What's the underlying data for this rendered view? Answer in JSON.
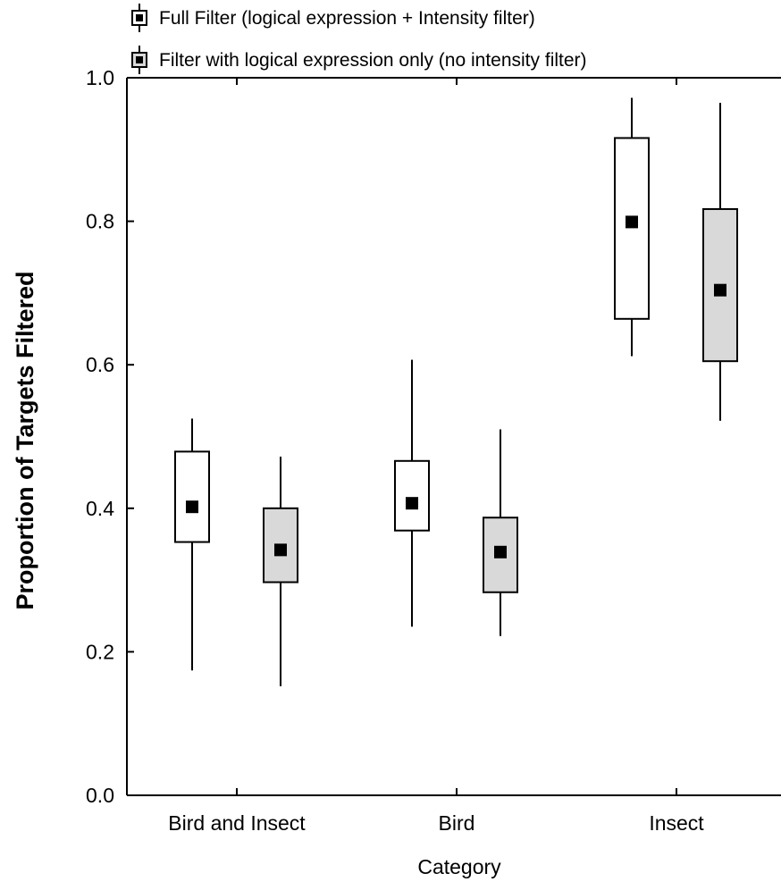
{
  "chart_data": {
    "type": "boxplot",
    "xlabel": "Category",
    "ylabel": "Proportion of Targets Filtered",
    "ylim": [
      0.0,
      1.0
    ],
    "yticks": [
      "0.0",
      "0.2",
      "0.4",
      "0.6",
      "0.8",
      "1.0"
    ],
    "categories": [
      "Bird and Insect",
      "Bird",
      "Insect"
    ],
    "grid": false,
    "legend_position": "top-left, above plot",
    "series": [
      {
        "name": "Full Filter (logical expression + Intensity filter)",
        "fill": "#ffffff",
        "mean": [
          0.402,
          0.407,
          0.799
        ],
        "box_low": [
          0.353,
          0.369,
          0.664
        ],
        "box_high": [
          0.479,
          0.466,
          0.916
        ],
        "whisker_low": [
          0.174,
          0.235,
          0.612
        ],
        "whisker_high": [
          0.525,
          0.607,
          0.972
        ]
      },
      {
        "name": "Filter with logical expression only (no intensity filter)",
        "fill": "#d9d9d9",
        "mean": [
          0.342,
          0.339,
          0.704
        ],
        "box_low": [
          0.297,
          0.283,
          0.605
        ],
        "box_high": [
          0.4,
          0.387,
          0.817
        ],
        "whisker_low": [
          0.152,
          0.222,
          0.522
        ],
        "whisker_high": [
          0.472,
          0.51,
          0.965
        ]
      }
    ]
  }
}
